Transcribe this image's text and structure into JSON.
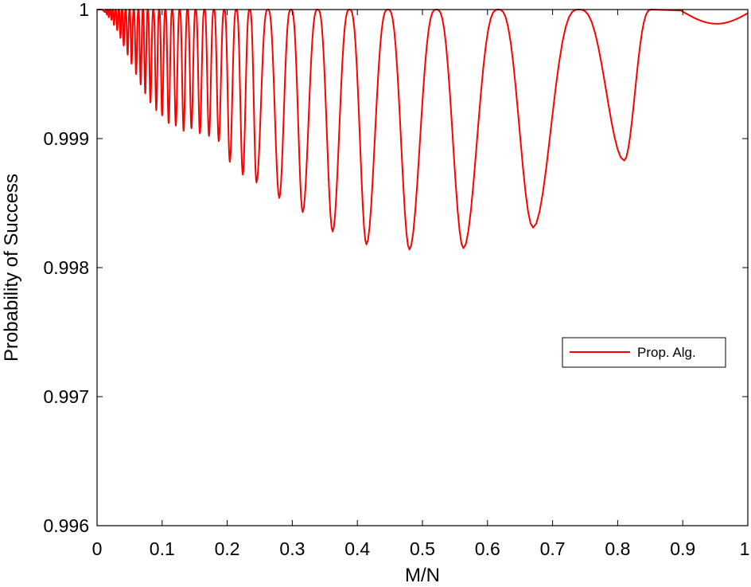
{
  "chart_data": {
    "type": "line",
    "title": "",
    "xlabel": "M/N",
    "ylabel": "Probability of Success",
    "xlim": [
      0,
      1
    ],
    "ylim": [
      0.996,
      1
    ],
    "xticks": [
      0,
      0.1,
      0.2,
      0.3,
      0.4,
      0.5,
      0.6,
      0.7,
      0.8,
      0.9,
      1
    ],
    "xtick_labels": [
      "0",
      "0.1",
      "0.2",
      "0.3",
      "0.4",
      "0.5",
      "0.6",
      "0.7",
      "0.8",
      "0.9",
      "1"
    ],
    "yticks": [
      0.996,
      0.997,
      0.998,
      0.999,
      1
    ],
    "ytick_labels": [
      "0.996",
      "0.997",
      "0.998",
      "0.999",
      "1"
    ],
    "grid": false,
    "legend_position": "right",
    "series": [
      {
        "name": "Prop. Alg.",
        "color": "#ff0000",
        "minima": [
          [
            0.0125,
            0.99998
          ],
          [
            0.015,
            0.99996
          ],
          [
            0.018,
            0.99994
          ],
          [
            0.022,
            0.99992
          ],
          [
            0.026,
            0.99988
          ],
          [
            0.031,
            0.99984
          ],
          [
            0.036,
            0.99978
          ],
          [
            0.041,
            0.99972
          ],
          [
            0.047,
            0.99965
          ],
          [
            0.053,
            0.99958
          ],
          [
            0.06,
            0.9995
          ],
          [
            0.067,
            0.99942
          ],
          [
            0.074,
            0.99935
          ],
          [
            0.082,
            0.99928
          ],
          [
            0.091,
            0.99922
          ],
          [
            0.1,
            0.99918
          ],
          [
            0.11,
            0.99912
          ],
          [
            0.121,
            0.9991
          ],
          [
            0.133,
            0.99906
          ],
          [
            0.145,
            0.99908
          ],
          [
            0.158,
            0.99904
          ],
          [
            0.172,
            0.99902
          ],
          [
            0.187,
            0.99898
          ],
          [
            0.204,
            0.99882
          ],
          [
            0.224,
            0.99872
          ],
          [
            0.245,
            0.99866
          ],
          [
            0.28,
            0.99854
          ],
          [
            0.316,
            0.99843
          ],
          [
            0.362,
            0.99828
          ],
          [
            0.414,
            0.99818
          ],
          [
            0.48,
            0.99814
          ],
          [
            0.563,
            0.99815
          ],
          [
            0.67,
            0.99831
          ],
          [
            0.81,
            0.99883
          ]
        ],
        "tail": [
          [
            0.895,
            1.0
          ],
          [
            0.93,
            0.99994
          ],
          [
            0.97,
            0.99989
          ],
          [
            1.0,
            0.99998
          ]
        ]
      }
    ]
  }
}
